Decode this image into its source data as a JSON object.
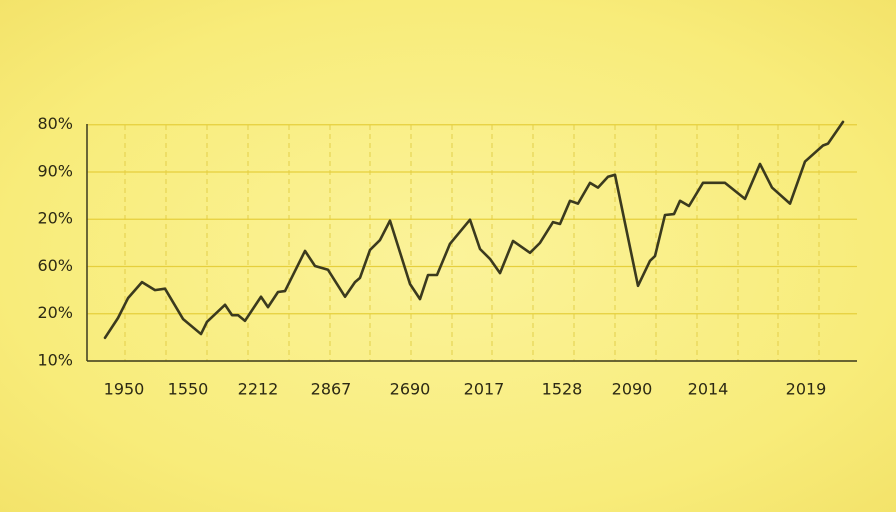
{
  "chart_data": {
    "type": "line",
    "x": [
      18,
      31,
      41,
      55,
      68,
      78,
      96,
      114,
      120,
      138,
      145,
      151,
      158,
      174,
      181,
      191,
      198,
      218,
      228,
      241,
      258,
      268,
      273,
      283,
      293,
      303,
      323,
      333,
      341,
      350,
      363,
      383,
      393,
      403,
      413,
      426,
      443,
      453,
      466,
      473,
      483,
      491,
      503,
      511,
      521,
      528,
      551,
      563,
      568,
      578,
      587,
      593,
      602,
      616,
      638,
      658,
      673,
      685,
      703,
      718,
      736,
      741,
      756
    ],
    "values": [
      0.49,
      0.91,
      1.33,
      1.67,
      1.5,
      1.53,
      0.89,
      0.57,
      0.83,
      1.19,
      0.97,
      0.97,
      0.85,
      1.36,
      1.14,
      1.46,
      1.48,
      2.33,
      2.01,
      1.93,
      1.36,
      1.67,
      1.76,
      2.35,
      2.56,
      2.97,
      1.63,
      1.31,
      1.82,
      1.82,
      2.48,
      2.99,
      2.37,
      2.16,
      1.86,
      2.54,
      2.29,
      2.5,
      2.94,
      2.9,
      3.39,
      3.33,
      3.77,
      3.67,
      3.9,
      3.94,
      1.59,
      2.12,
      2.22,
      3.09,
      3.11,
      3.39,
      3.28,
      3.77,
      3.77,
      3.43,
      4.17,
      3.67,
      3.33,
      4.22,
      4.56,
      4.6,
      5.06
    ],
    "color": "#3b3a1e",
    "xlim": [
      0,
      770
    ],
    "xticks": [
      {
        "value": 37,
        "label": "1950"
      },
      {
        "value": 101,
        "label": "1550"
      },
      {
        "value": 171,
        "label": "2212"
      },
      {
        "value": 244,
        "label": "2867"
      },
      {
        "value": 323,
        "label": "2690"
      },
      {
        "value": 397,
        "label": "2017"
      },
      {
        "value": 475,
        "label": "1528"
      },
      {
        "value": 545,
        "label": "2090"
      },
      {
        "value": 621,
        "label": "2014"
      },
      {
        "value": 719,
        "label": "2019"
      }
    ],
    "ylim": [
      0,
      5.1
    ],
    "yticks": [
      {
        "value": 0,
        "label": "10%"
      },
      {
        "value": 1,
        "label": "20%"
      },
      {
        "value": 2,
        "label": "60%"
      },
      {
        "value": 3,
        "label": "20%"
      },
      {
        "value": 4,
        "label": "90%"
      },
      {
        "value": 5,
        "label": "80%"
      }
    ],
    "grid": true
  }
}
